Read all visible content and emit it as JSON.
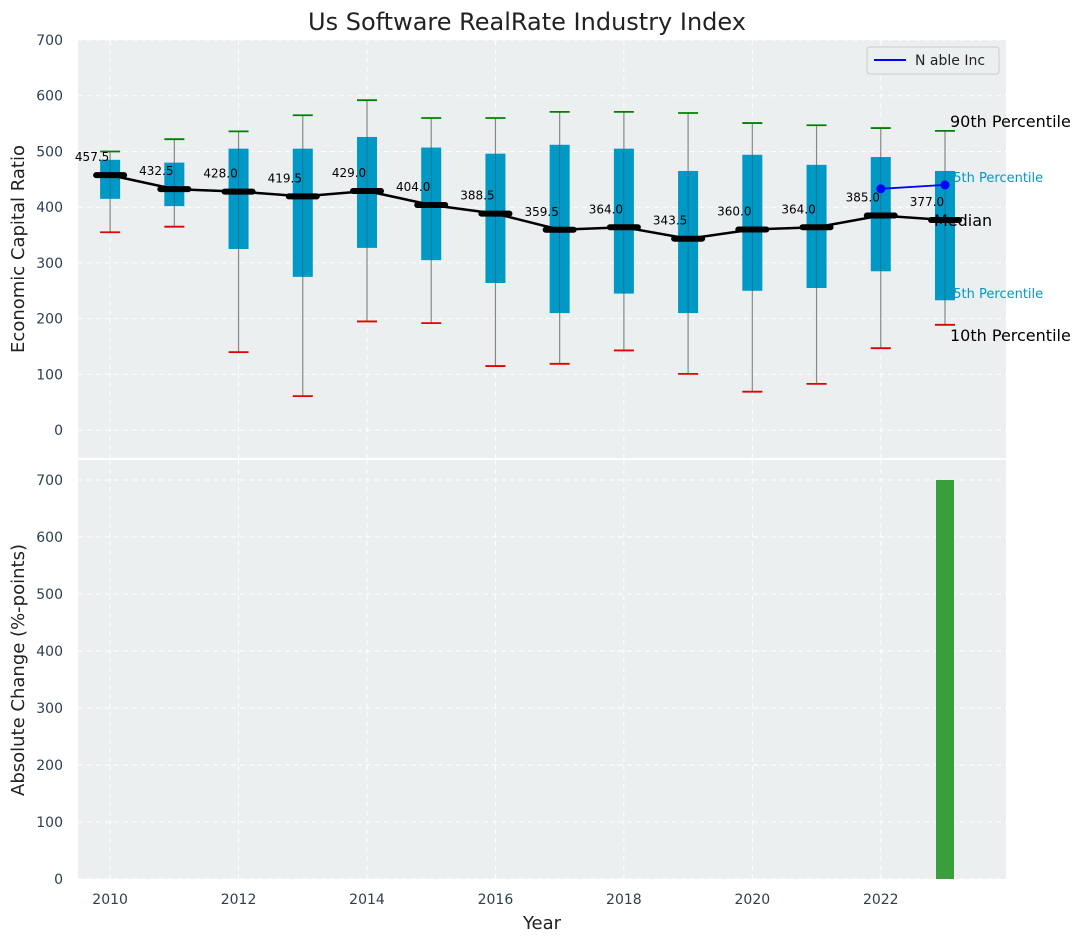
{
  "title": "Us Software RealRate Industry Index",
  "colors": {
    "plot_bg": "#ebeff0",
    "box": "#0099c6",
    "whisker": "#888888",
    "cap_high": "#008000",
    "cap_low": "#e00000",
    "median": "#000000",
    "company": "#0000ff",
    "bar": "#3a9e3d"
  },
  "legend": {
    "label": "N able Inc"
  },
  "percentile_labels": {
    "p90": "90th Percentile",
    "p75": "75th Percentile",
    "median": "Median",
    "p25": "25th Percentile",
    "p10": "10th Percentile"
  },
  "chart_data": [
    {
      "type": "box",
      "title": "Us Software RealRate Industry Index",
      "ylabel": "Economic Capital Ratio",
      "ylim": [
        -50,
        700
      ],
      "yticks": [
        0,
        100,
        200,
        300,
        400,
        500,
        600,
        700
      ],
      "xlim": [
        2009.5,
        2023.95
      ],
      "xticks": [
        2010,
        2012,
        2014,
        2016,
        2018,
        2020,
        2022
      ],
      "grid": true,
      "legend_position": "top-right",
      "boxes": [
        {
          "year": 2010,
          "p10": 355,
          "p25": 415,
          "median": 457.5,
          "p75": 485,
          "p90": 500
        },
        {
          "year": 2011,
          "p10": 365,
          "p25": 402,
          "median": 432.5,
          "p75": 480,
          "p90": 522
        },
        {
          "year": 2012,
          "p10": 140,
          "p25": 325,
          "median": 428.0,
          "p75": 505,
          "p90": 536
        },
        {
          "year": 2013,
          "p10": 61,
          "p25": 275,
          "median": 419.5,
          "p75": 505,
          "p90": 565
        },
        {
          "year": 2014,
          "p10": 195,
          "p25": 327,
          "median": 429.0,
          "p75": 526,
          "p90": 592
        },
        {
          "year": 2015,
          "p10": 192,
          "p25": 305,
          "median": 404.0,
          "p75": 507,
          "p90": 560
        },
        {
          "year": 2016,
          "p10": 115,
          "p25": 264,
          "median": 388.5,
          "p75": 496,
          "p90": 560
        },
        {
          "year": 2017,
          "p10": 119,
          "p25": 210,
          "median": 359.5,
          "p75": 512,
          "p90": 571
        },
        {
          "year": 2018,
          "p10": 143,
          "p25": 245,
          "median": 364.0,
          "p75": 505,
          "p90": 571
        },
        {
          "year": 2019,
          "p10": 101,
          "p25": 210,
          "median": 343.5,
          "p75": 465,
          "p90": 569
        },
        {
          "year": 2020,
          "p10": 69,
          "p25": 250,
          "median": 360.0,
          "p75": 494,
          "p90": 551
        },
        {
          "year": 2021,
          "p10": 83,
          "p25": 255,
          "median": 364.0,
          "p75": 476,
          "p90": 547
        },
        {
          "year": 2022,
          "p10": 147,
          "p25": 285,
          "median": 385.0,
          "p75": 490,
          "p90": 542
        },
        {
          "year": 2023,
          "p10": 189,
          "p25": 233,
          "median": 377.0,
          "p75": 465,
          "p90": 537
        }
      ],
      "median_labels": [
        "457.5",
        "432.5",
        "428.0",
        "419.5",
        "429.0",
        "404.0",
        "388.5",
        "359.5",
        "364.0",
        "343.5",
        "360.0",
        "364.0",
        "385.0",
        "377.0"
      ],
      "series": [
        {
          "name": "N able Inc",
          "x": [
            2022,
            2023
          ],
          "values": [
            433,
            440
          ]
        }
      ]
    },
    {
      "type": "bar",
      "ylabel": "Absolute Change (%-points)",
      "xlabel": "Year",
      "ylim": [
        0,
        735
      ],
      "yticks": [
        0,
        100,
        200,
        300,
        400,
        500,
        600,
        700
      ],
      "xticks": [
        2010,
        2012,
        2014,
        2016,
        2018,
        2020,
        2022
      ],
      "grid": true,
      "bars": [
        {
          "x": 2023,
          "value": 700
        }
      ]
    }
  ]
}
